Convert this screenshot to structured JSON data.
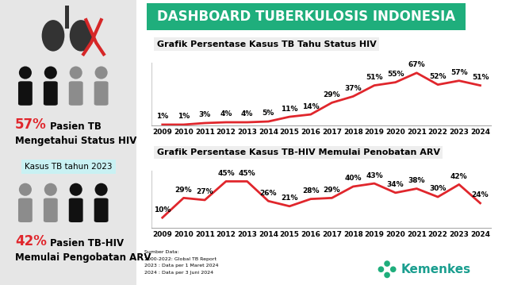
{
  "title": "DASHBOARD TUBERKULOSIS INDONESIA",
  "panels": [
    {
      "stat": "57%",
      "text": [
        "Pasien TB",
        "Mengetahui Status HIV"
      ]
    },
    {
      "stat": "42%",
      "text": [
        "Pasien TB-HIV",
        "Memulai Pengobatan ARV"
      ]
    }
  ],
  "panel_caption": "Kasus TB tahun 2023",
  "source": [
    "Sumber Data:",
    "2000-2022: Global TB Report",
    "2023 : Data per 1 Maret 2024",
    "2024 : Data per 3 Juni 2024"
  ],
  "logo": "Kemenkes",
  "chart_data": [
    {
      "type": "line",
      "title": "Grafik Persentase Kasus TB Tahu Status HIV",
      "categories": [
        "2009",
        "2010",
        "2011",
        "2012",
        "2013",
        "2014",
        "2015",
        "2016",
        "2017",
        "2018",
        "2019",
        "2020",
        "2021",
        "2022",
        "2023",
        "2024"
      ],
      "values": [
        1,
        1,
        3,
        4,
        4,
        5,
        11,
        14,
        29,
        37,
        51,
        55,
        67,
        52,
        57,
        51
      ],
      "value_labels": [
        "1%",
        "1%",
        "3%",
        "4%",
        "4%",
        "5%",
        "11%",
        "14%",
        "29%",
        "37%",
        "51%",
        "55%",
        "67%",
        "52%",
        "57%",
        "51%"
      ],
      "color": "#e0262c",
      "ylim": [
        0,
        80
      ],
      "data_labels": true,
      "tick_labels": "x",
      "grid": false
    },
    {
      "type": "line",
      "title": "Grafik Persentase Kasus TB-HIV Memulai Penobatan ARV",
      "categories": [
        "2009",
        "2010",
        "2011",
        "2012",
        "2013",
        "2014",
        "2015",
        "2016",
        "2017",
        "2018",
        "2019",
        "2020",
        "2021",
        "2022",
        "2023",
        "2024"
      ],
      "values": [
        10,
        29,
        27,
        45,
        45,
        26,
        21,
        28,
        29,
        40,
        43,
        34,
        38,
        30,
        42,
        24
      ],
      "value_labels": [
        "10%",
        "29%",
        "27%",
        "45%",
        "45%",
        "26%",
        "21%",
        "28%",
        "29%",
        "40%",
        "43%",
        "34%",
        "38%",
        "30%",
        "42%",
        "24%"
      ],
      "color": "#e0262c",
      "ylim": [
        0,
        55
      ],
      "data_labels": true,
      "tick_labels": "x",
      "grid": false
    }
  ]
}
